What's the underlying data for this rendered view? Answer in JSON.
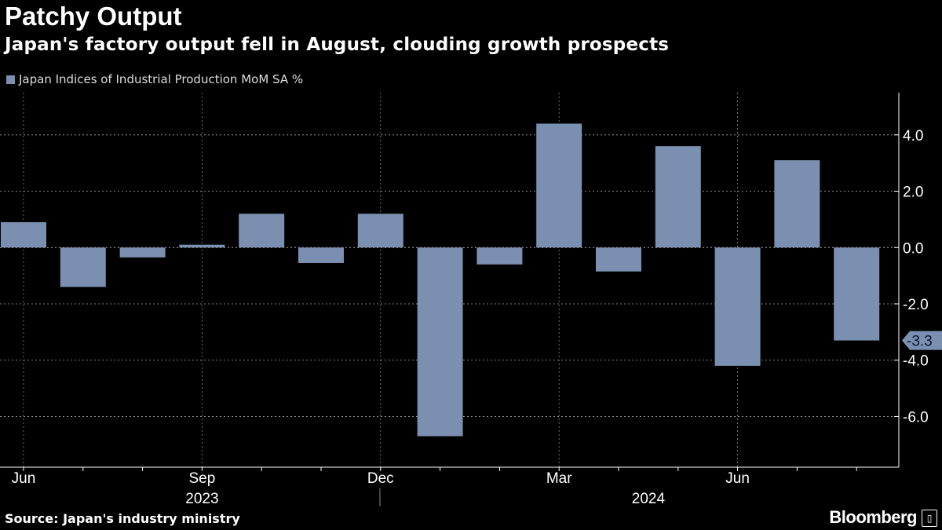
{
  "header": {
    "title": "Patchy Output",
    "subtitle": "Japan's factory output fell in August, clouding growth prospects"
  },
  "footer": {
    "source": "Source: Japan's industry ministry",
    "brand": "Bloomberg"
  },
  "colors": {
    "bar": "#7b8fb0",
    "background": "#000000"
  },
  "chart_data": {
    "type": "bar",
    "legend": [
      "Japan Indices of Industrial Production MoM SA %"
    ],
    "categories": [
      "2023-06",
      "2023-07",
      "2023-08",
      "2023-09",
      "2023-10",
      "2023-11",
      "2023-12",
      "2024-01",
      "2024-02",
      "2024-03",
      "2024-04",
      "2024-05",
      "2024-06",
      "2024-07",
      "2024-08"
    ],
    "values": [
      0.9,
      -1.4,
      -0.35,
      0.1,
      1.2,
      -0.55,
      1.2,
      -6.7,
      -0.6,
      4.4,
      -0.85,
      3.6,
      -4.2,
      3.1,
      -3.3
    ],
    "ylim": [
      -7.8,
      5.5
    ],
    "yticks": [
      4,
      2,
      0,
      -2,
      -4,
      -6
    ],
    "ytick_labels": [
      "4.0",
      "2.0",
      "0.0",
      "-2.0",
      "-4.0",
      "-6.0"
    ],
    "xtick_labels": [
      {
        "index": 0,
        "label": "Jun"
      },
      {
        "index": 3,
        "label": "Sep"
      },
      {
        "index": 6,
        "label": "Dec"
      },
      {
        "index": 9,
        "label": "Mar"
      },
      {
        "index": 12,
        "label": "Jun"
      }
    ],
    "year_labels": [
      {
        "index": 3,
        "label": "2023"
      },
      {
        "index": 10.5,
        "label": "2024"
      }
    ],
    "last_value_label": "-3.3",
    "grid": true
  }
}
